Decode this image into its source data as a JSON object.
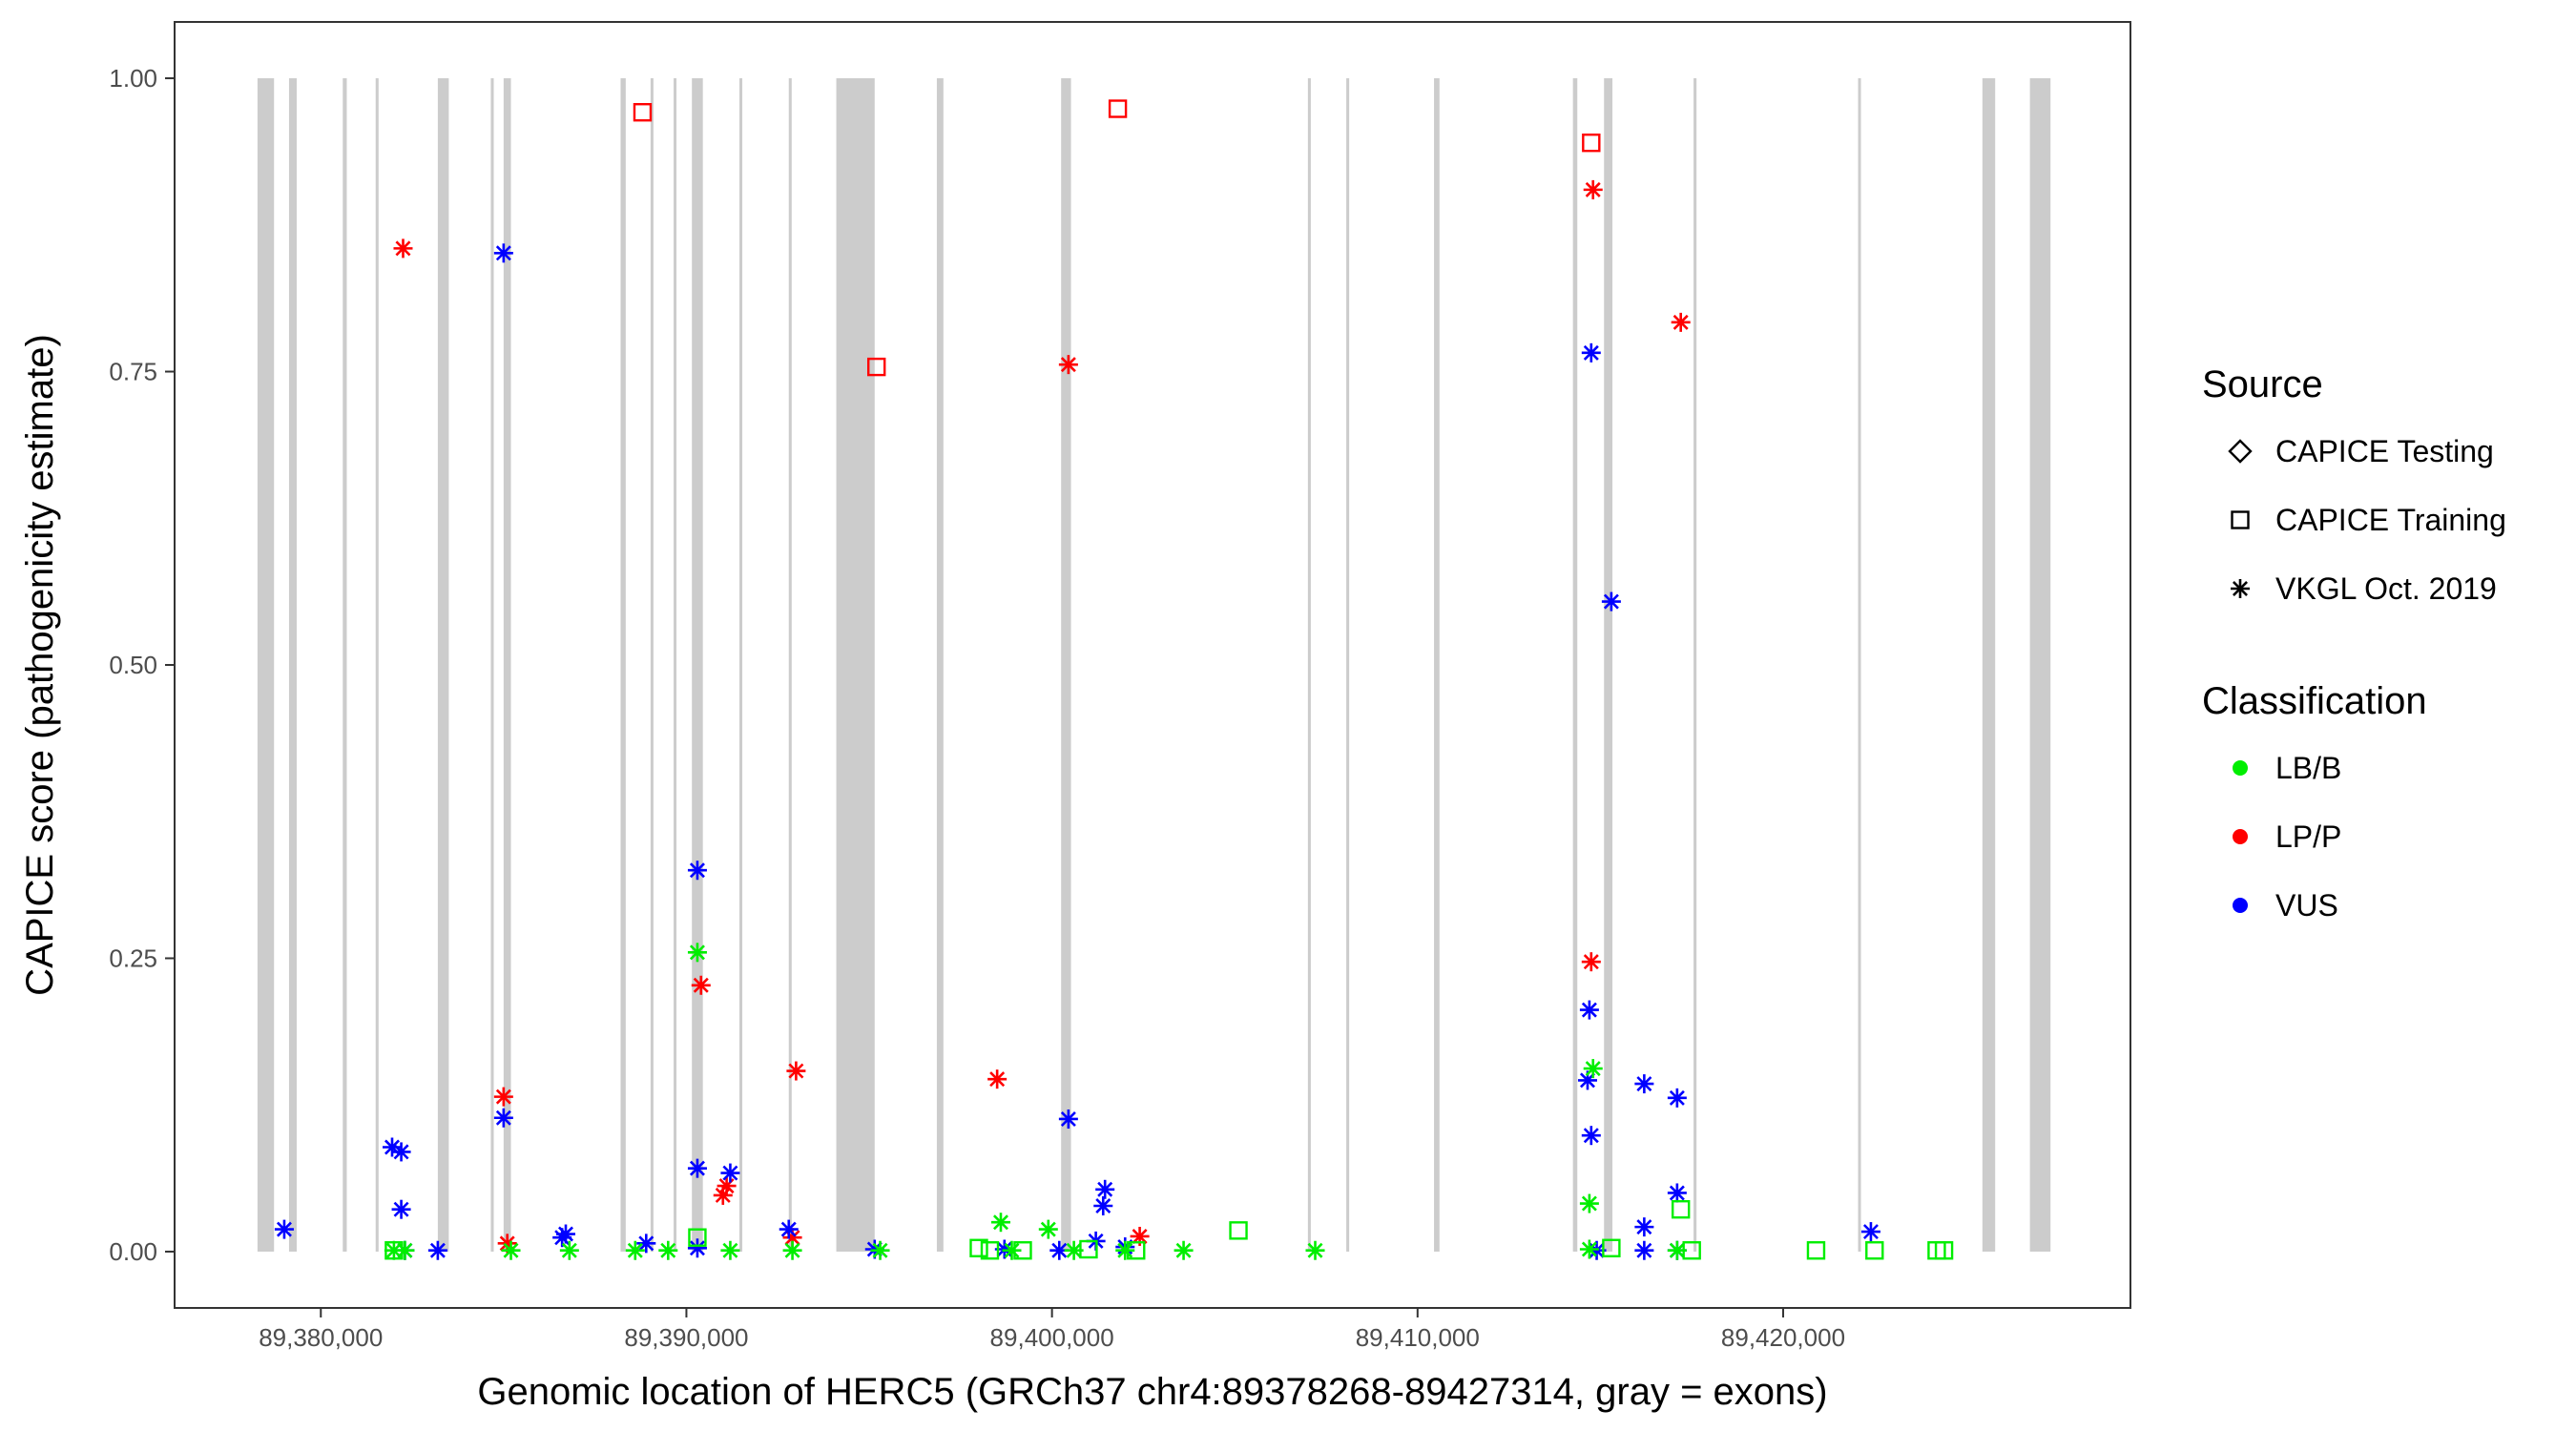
{
  "chart_data": {
    "type": "scatter",
    "title": "",
    "xlabel": "Genomic location of HERC5 (GRCh37 chr4:89378268-89427314, gray = exons)",
    "ylabel": "CAPICE score (pathogenicity estimate)",
    "xlim": [
      89376000,
      89429500
    ],
    "ylim": [
      -0.048,
      1.048
    ],
    "xticks": [
      89380000,
      89390000,
      89400000,
      89410000,
      89420000
    ],
    "xtick_labels": [
      "89,380,000",
      "89,390,000",
      "89,400,000",
      "89,410,000",
      "89,420,000"
    ],
    "yticks": [
      0.0,
      0.25,
      0.5,
      0.75,
      1.0
    ],
    "ytick_labels": [
      "0.00",
      "0.25",
      "0.50",
      "0.75",
      "1.00"
    ],
    "grid": false,
    "legend_position": "right",
    "colors": {
      "LB/B": "#00ee00",
      "LP/P": "#ff0000",
      "VUS": "#0000ff",
      "exon": "#cccccc"
    },
    "exons": [
      [
        89378268,
        89378720
      ],
      [
        89379130,
        89379340
      ],
      [
        89380600,
        89380710
      ],
      [
        89381500,
        89381580
      ],
      [
        89383200,
        89383500
      ],
      [
        89384650,
        89384730
      ],
      [
        89385000,
        89385200
      ],
      [
        89388200,
        89388340
      ],
      [
        89389020,
        89389080
      ],
      [
        89389650,
        89389720
      ],
      [
        89390150,
        89390450
      ],
      [
        89391450,
        89391510
      ],
      [
        89392800,
        89392880
      ],
      [
        89394100,
        89395150
      ],
      [
        89396850,
        89397030
      ],
      [
        89400250,
        89400520
      ],
      [
        89407000,
        89407080
      ],
      [
        89408050,
        89408130
      ],
      [
        89410450,
        89410600
      ],
      [
        89414250,
        89414370
      ],
      [
        89415100,
        89415330
      ],
      [
        89417550,
        89417630
      ],
      [
        89422050,
        89422110
      ],
      [
        89425450,
        89425800
      ],
      [
        89426750,
        89427314
      ]
    ],
    "legends": [
      {
        "title": "Source",
        "entries": [
          {
            "label": "CAPICE Testing",
            "shape": "diamond"
          },
          {
            "label": "CAPICE Training",
            "shape": "square"
          },
          {
            "label": "VKGL Oct. 2019",
            "shape": "asterisk"
          }
        ]
      },
      {
        "title": "Classification",
        "entries": [
          {
            "label": "LB/B",
            "color": "#00ee00"
          },
          {
            "label": "LP/P",
            "color": "#ff0000"
          },
          {
            "label": "VUS",
            "color": "#0000ff"
          }
        ]
      }
    ],
    "series": [
      {
        "source": "CAPICE Training",
        "classification": "LP/P",
        "points": [
          [
            89388800,
            0.971
          ],
          [
            89401800,
            0.974
          ],
          [
            89395200,
            0.754
          ],
          [
            89414750,
            0.945
          ]
        ]
      },
      {
        "source": "VKGL Oct. 2019",
        "classification": "LP/P",
        "points": [
          [
            89382250,
            0.855
          ],
          [
            89400450,
            0.756
          ],
          [
            89414800,
            0.905
          ],
          [
            89417200,
            0.792
          ],
          [
            89385000,
            0.132
          ],
          [
            89390400,
            0.227
          ],
          [
            89393000,
            0.154
          ],
          [
            89398500,
            0.147
          ],
          [
            89414750,
            0.247
          ],
          [
            89391000,
            0.048
          ],
          [
            89391100,
            0.056
          ],
          [
            89385100,
            0.007
          ],
          [
            89392900,
            0.012
          ],
          [
            89402400,
            0.013
          ]
        ]
      },
      {
        "source": "VKGL Oct. 2019",
        "classification": "VUS",
        "points": [
          [
            89385000,
            0.851
          ],
          [
            89414750,
            0.766
          ],
          [
            89415300,
            0.554
          ],
          [
            89390300,
            0.325
          ],
          [
            89414700,
            0.206
          ],
          [
            89414650,
            0.146
          ],
          [
            89416200,
            0.143
          ],
          [
            89417100,
            0.131
          ],
          [
            89400450,
            0.113
          ],
          [
            89385000,
            0.114
          ],
          [
            89414750,
            0.099
          ],
          [
            89381950,
            0.089
          ],
          [
            89382200,
            0.085
          ],
          [
            89390300,
            0.071
          ],
          [
            89391200,
            0.067
          ],
          [
            89401450,
            0.053
          ],
          [
            89417100,
            0.05
          ],
          [
            89401400,
            0.039
          ],
          [
            89382200,
            0.036
          ],
          [
            89379000,
            0.019
          ],
          [
            89386700,
            0.015
          ],
          [
            89386600,
            0.012
          ],
          [
            89392800,
            0.019
          ],
          [
            89416200,
            0.021
          ],
          [
            89422400,
            0.017
          ],
          [
            89388900,
            0.007
          ],
          [
            89401200,
            0.009
          ],
          [
            89390300,
            0.003
          ],
          [
            89395150,
            0.002
          ],
          [
            89383200,
            0.001
          ],
          [
            89382300,
            0.001
          ],
          [
            89402000,
            0.004
          ],
          [
            89398700,
            0.002
          ],
          [
            89400200,
            0.001
          ],
          [
            89414900,
            0.001
          ],
          [
            89416200,
            0.001
          ],
          [
            89417100,
            0.001
          ]
        ]
      },
      {
        "source": "VKGL Oct. 2019",
        "classification": "LB/B",
        "points": [
          [
            89390300,
            0.255
          ],
          [
            89414800,
            0.156
          ],
          [
            89414700,
            0.041
          ],
          [
            89398600,
            0.025
          ],
          [
            89399900,
            0.019
          ],
          [
            89382000,
            0.001
          ],
          [
            89382300,
            0.001
          ],
          [
            89385200,
            0.001
          ],
          [
            89386800,
            0.001
          ],
          [
            89388600,
            0.001
          ],
          [
            89389500,
            0.001
          ],
          [
            89391200,
            0.001
          ],
          [
            89392900,
            0.001
          ],
          [
            89395300,
            0.001
          ],
          [
            89398900,
            0.001
          ],
          [
            89400600,
            0.001
          ],
          [
            89402000,
            0.001
          ],
          [
            89403600,
            0.001
          ],
          [
            89407200,
            0.001
          ],
          [
            89414700,
            0.002
          ],
          [
            89417100,
            0.001
          ]
        ]
      },
      {
        "source": "CAPICE Training",
        "classification": "LB/B",
        "points": [
          [
            89390300,
            0.012
          ],
          [
            89405100,
            0.018
          ],
          [
            89417200,
            0.036
          ],
          [
            89398000,
            0.003
          ],
          [
            89399200,
            0.001
          ],
          [
            89401000,
            0.002
          ],
          [
            89402300,
            0.001
          ],
          [
            89415300,
            0.003
          ],
          [
            89417500,
            0.001
          ],
          [
            89420900,
            0.001
          ],
          [
            89422500,
            0.001
          ],
          [
            89424200,
            0.001
          ],
          [
            89424400,
            0.001
          ],
          [
            89382000,
            0.001
          ],
          [
            89398300,
            0.001
          ]
        ]
      }
    ]
  }
}
